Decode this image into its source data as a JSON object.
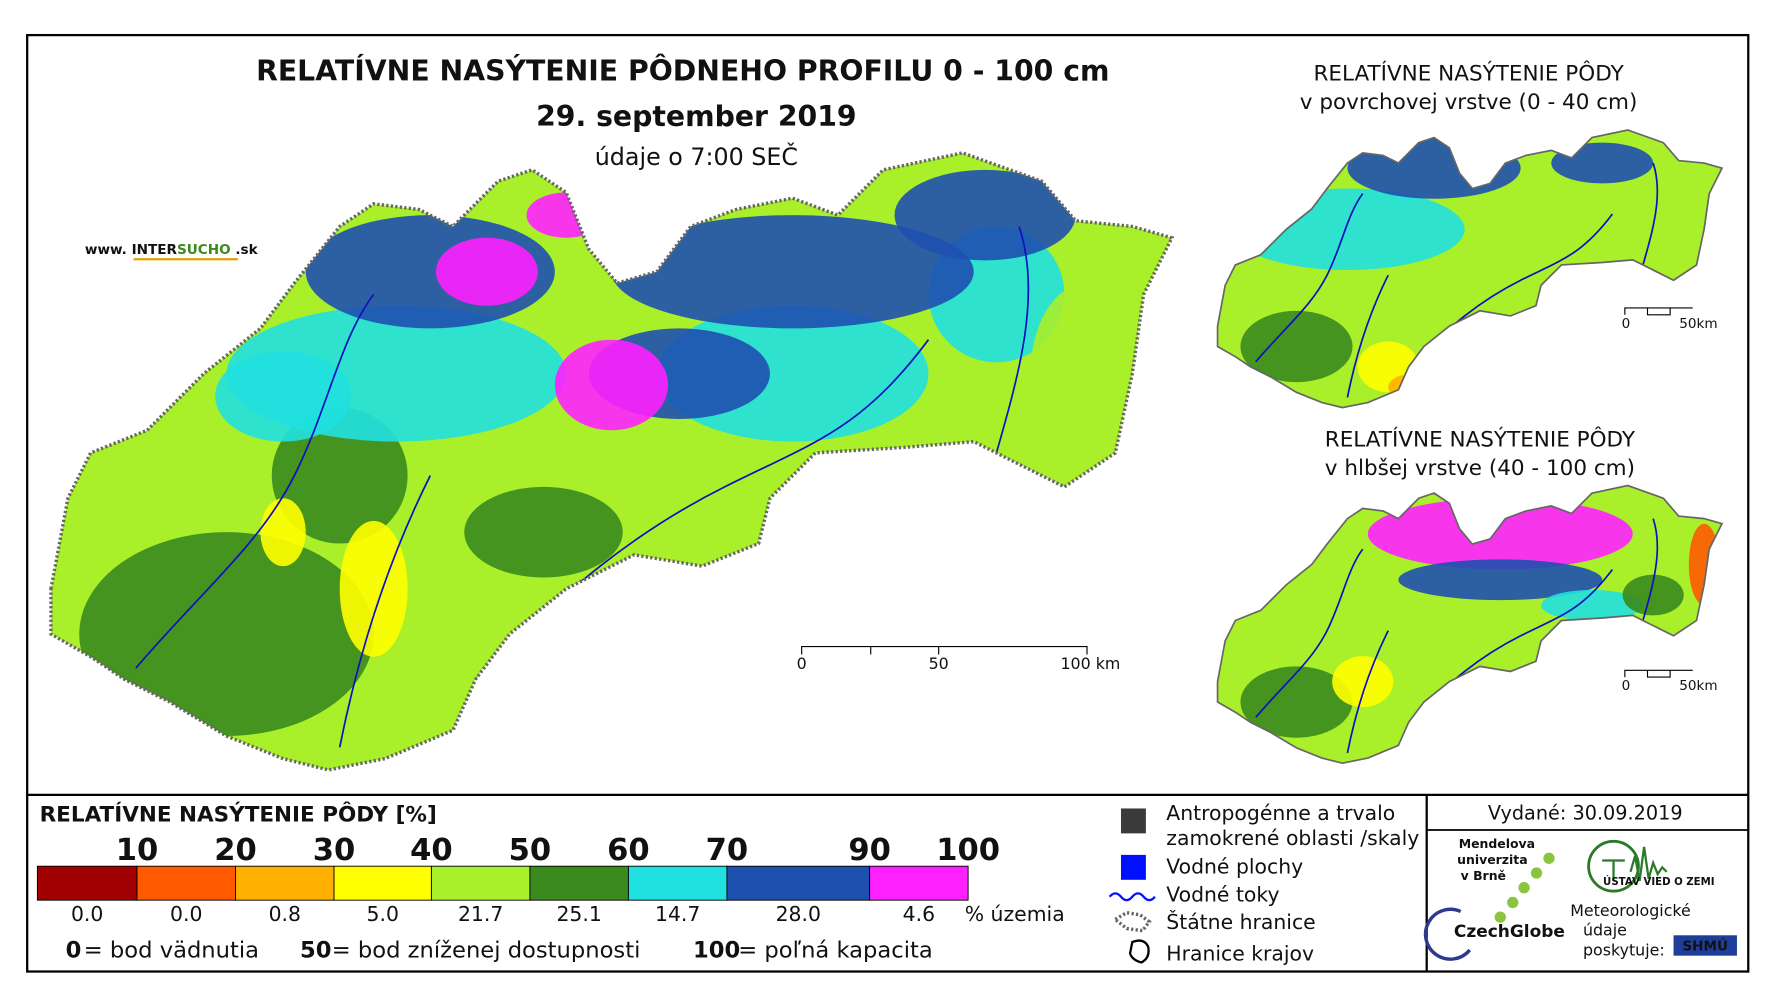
{
  "header": {
    "title": "RELATÍVNE NASÝTENIE PÔDNEHO PROFILU 0 - 100 cm",
    "date": "29. september 2019",
    "time_note": "údaje o 7:00 SEČ",
    "website": [
      "www. INTER",
      "SUCHO",
      " .sk"
    ]
  },
  "main_map": {
    "scale_labels": [
      "0",
      "50",
      "100 km"
    ]
  },
  "inset_maps": [
    {
      "title_lines": [
        "RELATÍVNE NASÝTENIE PÔDY",
        "v povrchovej vrstve (0 - 40 cm)"
      ],
      "scale_labels": [
        "0",
        "50km"
      ]
    },
    {
      "title_lines": [
        "RELATÍVNE NASÝTENIE PÔDY",
        "v hlbšej vrstve (40 - 100 cm)"
      ],
      "scale_labels": [
        "0",
        "50km"
      ]
    }
  ],
  "legend": {
    "title": "RELATÍVNE NASÝTENIE PÔDY [%]",
    "thresholds": [
      10,
      20,
      30,
      40,
      50,
      60,
      70,
      90,
      100
    ],
    "colors": [
      "#a00000",
      "#ff5a00",
      "#ffb000",
      "#ffff00",
      "#aaf02a",
      "#3a8a1e",
      "#20e0e0",
      "#1e50b0",
      "#ff20ff"
    ],
    "shares": [
      0,
      0,
      0.8,
      5,
      21.7,
      25.1,
      14.7,
      28,
      4.6
    ],
    "share_labels": [
      "0.0",
      "0.0",
      "0.8",
      "5.0",
      "21.7",
      "25.1",
      "14.7",
      "28.0",
      "4.6"
    ],
    "share_unit": "% územia",
    "key_points": [
      {
        "value": "0",
        "label": "= bod vädnutia"
      },
      {
        "value": "50",
        "label": "= bod zníženej dostupnosti"
      },
      {
        "value": "100",
        "label": "= poľná kapacita"
      }
    ]
  },
  "symbols": [
    [
      "Antropogénne a trvalo",
      "zamokrené oblasti /skaly"
    ],
    [
      "Vodné plochy"
    ],
    [
      "Vodné toky"
    ],
    [
      "Štátne hranice"
    ],
    [
      "Hranice krajov"
    ]
  ],
  "footer": {
    "issued": "Vydané: 30.09.2019",
    "mendel": [
      "Mendelova",
      "univerzita",
      "v Brně"
    ],
    "czechglobe": "CzechGlobe",
    "institute": "ÚSTAV VIED O ZEMI",
    "provider": [
      "Meteorologické",
      "údaje",
      "poskytuje:"
    ],
    "shmu": "SHMÚ"
  }
}
